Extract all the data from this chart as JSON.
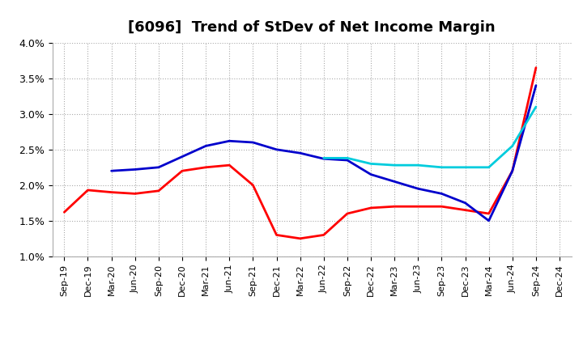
{
  "title": "[6096]  Trend of StDev of Net Income Margin",
  "ylim": [
    0.01,
    0.04
  ],
  "yticks": [
    0.01,
    0.015,
    0.02,
    0.025,
    0.03,
    0.035,
    0.04
  ],
  "ytick_labels": [
    "1.0%",
    "1.5%",
    "2.0%",
    "2.5%",
    "3.0%",
    "3.5%",
    "4.0%"
  ],
  "x_labels": [
    "Sep-19",
    "Dec-19",
    "Mar-20",
    "Jun-20",
    "Sep-20",
    "Dec-20",
    "Mar-21",
    "Jun-21",
    "Sep-21",
    "Dec-21",
    "Mar-22",
    "Jun-22",
    "Sep-22",
    "Dec-22",
    "Mar-23",
    "Jun-23",
    "Sep-23",
    "Dec-23",
    "Mar-24",
    "Jun-24",
    "Sep-24",
    "Dec-24"
  ],
  "line_3y": [
    0.0162,
    0.0193,
    0.019,
    0.0188,
    0.0192,
    0.022,
    0.0225,
    0.0228,
    0.02,
    0.013,
    0.0125,
    0.013,
    0.016,
    0.0168,
    0.017,
    0.017,
    0.017,
    0.0165,
    0.016,
    0.022,
    0.0365,
    null
  ],
  "line_5y": [
    null,
    null,
    0.022,
    0.0222,
    0.0225,
    0.024,
    0.0255,
    0.0262,
    0.026,
    0.025,
    0.0245,
    0.0237,
    0.0235,
    0.0215,
    0.0205,
    0.0195,
    0.0188,
    0.0175,
    0.015,
    0.022,
    0.034,
    null
  ],
  "line_7y": [
    null,
    null,
    null,
    null,
    null,
    null,
    null,
    null,
    null,
    null,
    null,
    0.0238,
    0.0238,
    0.023,
    0.0228,
    0.0228,
    0.0225,
    0.0225,
    0.0225,
    0.0255,
    0.031,
    null
  ],
  "line_10y": [
    null,
    null,
    null,
    null,
    null,
    null,
    null,
    null,
    null,
    null,
    null,
    null,
    null,
    null,
    null,
    null,
    null,
    null,
    null,
    null,
    null,
    null
  ],
  "color_3y": "#FF0000",
  "color_5y": "#0000CC",
  "color_7y": "#00CCDD",
  "color_10y": "#008000",
  "background_color": "#FFFFFF",
  "plot_bg_color": "#FFFFFF",
  "title_fontsize": 13,
  "tick_fontsize": 9,
  "linewidth": 2.0
}
